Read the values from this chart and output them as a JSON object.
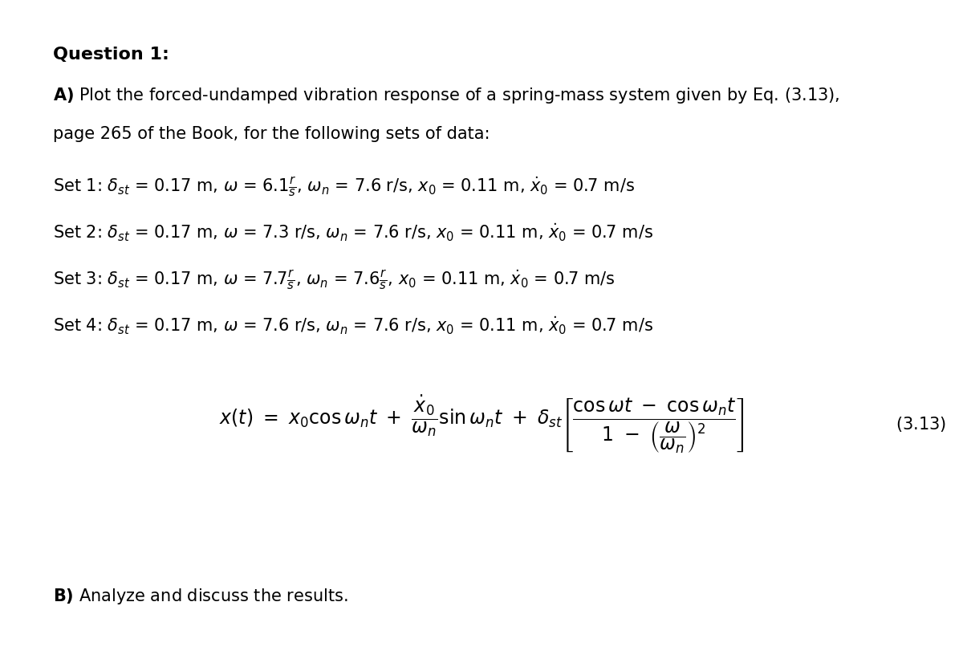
{
  "bg_color": "#ffffff",
  "title_bold": "Question 1:",
  "line_A": "A) Plot the forced-undamped vibration response of a spring-mass system given by Eq. (3.13),",
  "line_page": "page 265 of the Book, for the following sets of data:",
  "set1": "Set 1: $\\delta_{st}$ = 0.17 m, $\\omega$ = 6.1$\\frac{r}{s}$, $\\omega_n$ = 7.6 r/s, $x_0$ = 0.11 m, $\\dot{x}_0$ = 0.7 m/s",
  "set2": "Set 2: $\\delta_{st}$ = 0.17 m, $\\omega$ = 7.3 r/s, $\\omega_n$ = 7.6 r/s, $x_0$ = 0.11 m, $\\dot{x}_0$ = 0.7 m/s",
  "set3": "Set 3: $\\delta_{st}$ = 0.17 m, $\\omega$ = 7.7$\\frac{r}{s}$, $\\omega_n$ = 7.6$\\frac{r}{s}$, $x_0$ = 0.11 m, $\\dot{x}_0$ = 0.7 m/s",
  "set4": "Set 4: $\\delta_{st}$ = 0.17 m, $\\omega$ = 7.6 r/s, $\\omega_n$ = 7.6 r/s, $x_0$ = 0.11 m, $\\dot{x}_0$ = 0.7 m/s",
  "eq_label": "(3.13)",
  "line_B": "B) Analyze and discuss the results.",
  "font_size_title": 16,
  "font_size_body": 15,
  "font_size_set": 15,
  "text_color": "#000000"
}
